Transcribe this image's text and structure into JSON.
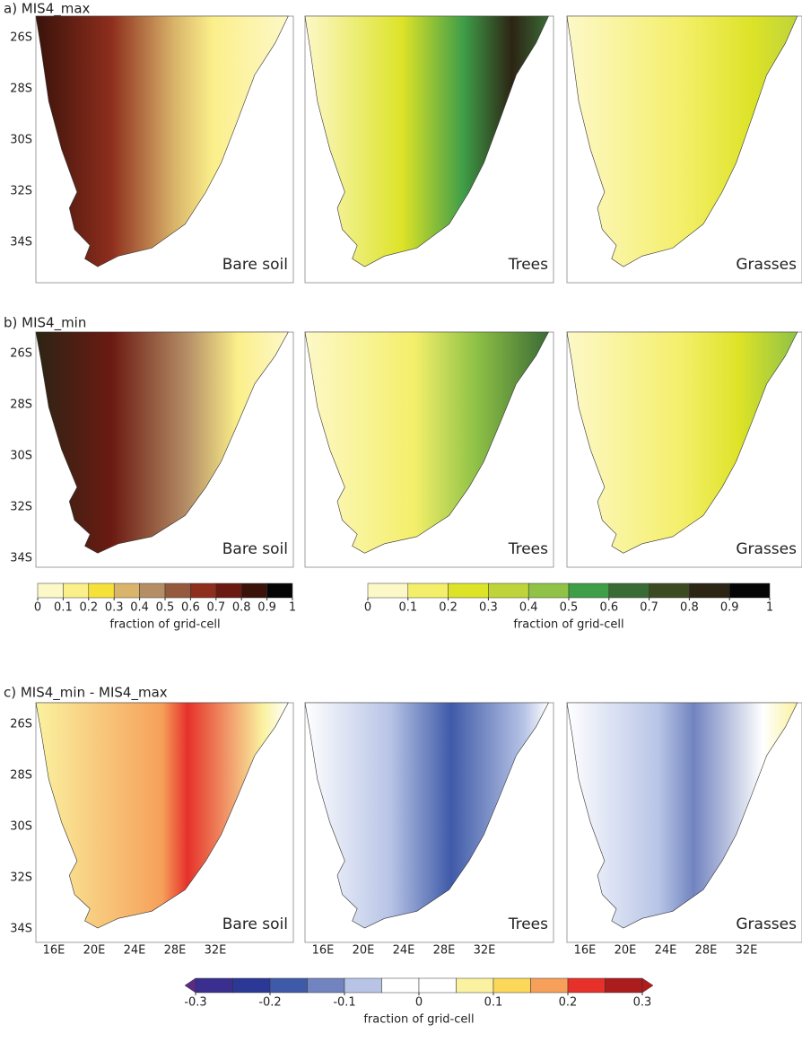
{
  "rows": [
    {
      "label": "a) MIS4_max"
    },
    {
      "label": "b) MIS4_min"
    },
    {
      "label": "c) MIS4_min - MIS4_max"
    }
  ],
  "panel_labels": [
    "Bare soil",
    "Trees",
    "Grasses"
  ],
  "lat_labels": [
    "26S",
    "28S",
    "30S",
    "32S",
    "34S"
  ],
  "lon_labels": [
    "16E",
    "20E",
    "24E",
    "28E",
    "32E"
  ],
  "colorbars": [
    {
      "lim": [
        0,
        1
      ],
      "ticks": [
        0,
        0.1,
        0.2,
        0.3,
        0.4,
        0.5,
        0.6,
        0.7,
        0.8,
        0.9,
        1
      ],
      "label": "fraction of grid-cell",
      "colors": [
        "#fdf8c8",
        "#fbef8a",
        "#f6e13a",
        "#d9b46a",
        "#b58e66",
        "#935a3e",
        "#8e2e1d",
        "#6b1a12",
        "#3a120a",
        "#050505"
      ]
    },
    {
      "lim": [
        0,
        1
      ],
      "ticks": [
        0,
        0.1,
        0.2,
        0.3,
        0.4,
        0.5,
        0.6,
        0.7,
        0.8,
        0.9,
        1
      ],
      "label": "fraction of grid-cell",
      "colors": [
        "#fdf8c8",
        "#f4ef6a",
        "#dde327",
        "#bfd43a",
        "#8fc246",
        "#3f9e48",
        "#3b6b35",
        "#3c4a22",
        "#2c2414",
        "#050505"
      ]
    },
    {
      "lim": [
        -0.3,
        0.3
      ],
      "ticks": [
        -0.3,
        -0.2,
        -0.1,
        0,
        0.1,
        0.2,
        0.3
      ],
      "label": "fraction of grid-cell",
      "colors": [
        "#3a2e8e",
        "#2b3896",
        "#3f5aa8",
        "#7284c0",
        "#b7c4e6",
        "#ffffff",
        "#ffffff",
        "#faf2a0",
        "#fbd75a",
        "#f6a05a",
        "#e6312a",
        "#ab1d1d"
      ],
      "extend_colors": [
        "#5b2a86",
        "#b31b1b"
      ]
    }
  ]
}
